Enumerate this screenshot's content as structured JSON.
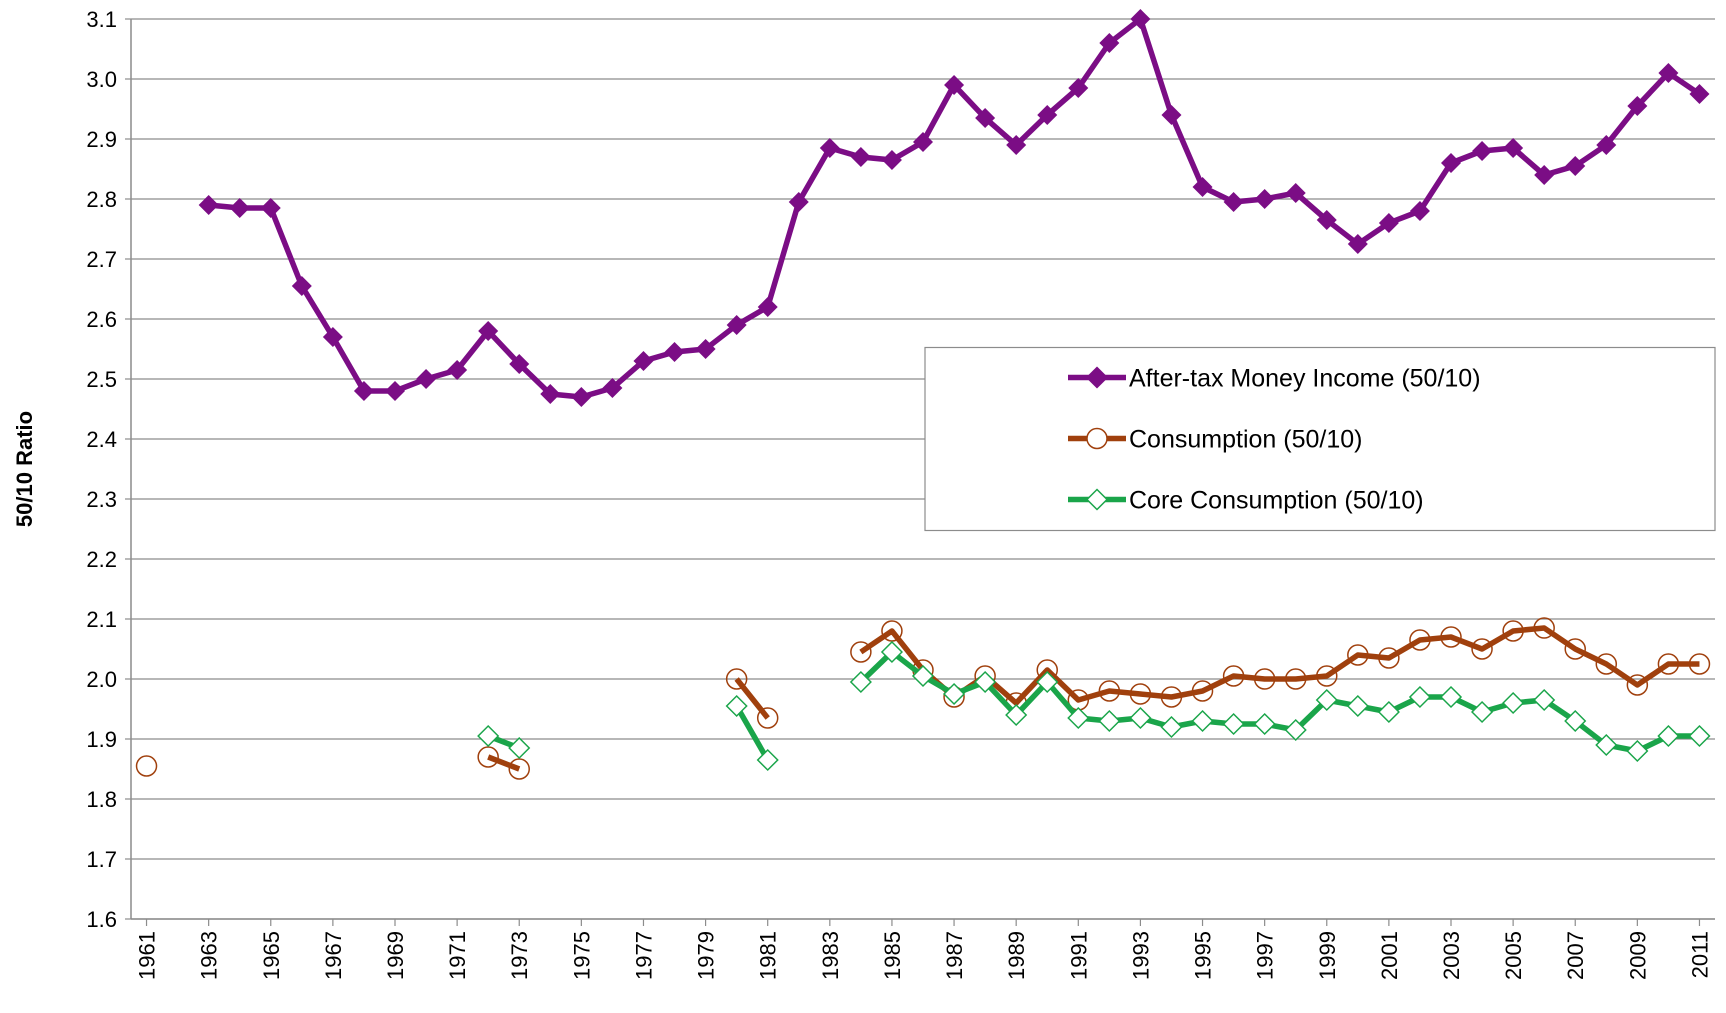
{
  "chart_data": {
    "type": "line",
    "y_label": "50/10 Ratio",
    "x": [
      1961,
      1962,
      1963,
      1964,
      1965,
      1966,
      1967,
      1968,
      1969,
      1970,
      1971,
      1972,
      1973,
      1974,
      1975,
      1976,
      1977,
      1978,
      1979,
      1980,
      1981,
      1982,
      1983,
      1984,
      1985,
      1986,
      1987,
      1988,
      1989,
      1990,
      1991,
      1992,
      1993,
      1994,
      1995,
      1996,
      1997,
      1998,
      1999,
      2000,
      2001,
      2002,
      2003,
      2004,
      2005,
      2006,
      2007,
      2008,
      2009,
      2010,
      2011
    ],
    "xlim": [
      1960.5,
      2011.5
    ],
    "xticks": [
      1961,
      1963,
      1965,
      1967,
      1969,
      1971,
      1973,
      1975,
      1977,
      1979,
      1981,
      1983,
      1985,
      1987,
      1989,
      1991,
      1993,
      1995,
      1997,
      1999,
      2001,
      2003,
      2005,
      2007,
      2009,
      2011
    ],
    "ylim": [
      1.6,
      3.1
    ],
    "yticks": [
      1.6,
      1.7,
      1.8,
      1.9,
      {
        "value": 2,
        "label": "2.0"
      },
      2.1,
      2.2,
      2.3,
      2.4,
      2.5,
      2.6,
      2.7,
      2.8,
      2.9,
      {
        "value": 3,
        "label": "3.0"
      },
      3.1
    ],
    "grid": true,
    "legend": "center-right",
    "series": [
      {
        "name": "After-tax Money Income (50/10)",
        "color": "#7b0d85",
        "marker": "diamond-filled",
        "values": [
          null,
          null,
          2.79,
          2.785,
          2.785,
          2.655,
          2.57,
          2.48,
          2.48,
          2.5,
          2.515,
          2.58,
          2.525,
          2.475,
          2.47,
          2.485,
          2.53,
          2.545,
          2.55,
          2.59,
          2.62,
          2.795,
          2.885,
          2.87,
          2.865,
          2.895,
          2.99,
          2.935,
          2.89,
          2.94,
          2.985,
          3.06,
          3.1,
          2.94,
          2.82,
          2.795,
          2.8,
          2.81,
          2.765,
          2.725,
          2.76,
          2.78,
          2.86,
          2.88,
          2.885,
          2.84,
          2.855,
          2.89,
          2.955,
          3.01,
          2.975
        ]
      },
      {
        "name": "Consumption (50/10)",
        "color": "#a0400d",
        "marker": "circle-open",
        "values": [
          1.855,
          null,
          null,
          null,
          null,
          null,
          null,
          null,
          null,
          null,
          null,
          1.87,
          1.85,
          null,
          null,
          null,
          null,
          null,
          null,
          2.0,
          1.935,
          null,
          null,
          2.045,
          2.08,
          2.015,
          1.97,
          2.005,
          1.96,
          2.015,
          1.965,
          1.98,
          1.975,
          1.97,
          1.98,
          2.005,
          2.0,
          2.0,
          2.005,
          2.04,
          2.035,
          2.065,
          2.07,
          2.05,
          2.08,
          2.085,
          2.05,
          2.025,
          1.99,
          2.025,
          2.025
        ]
      },
      {
        "name": "Core Consumption (50/10)",
        "color": "#1aa54a",
        "marker": "diamond-open",
        "values": [
          null,
          null,
          null,
          null,
          null,
          null,
          null,
          null,
          null,
          null,
          null,
          1.905,
          1.885,
          null,
          null,
          null,
          null,
          null,
          null,
          1.955,
          1.865,
          null,
          null,
          1.995,
          2.045,
          2.005,
          1.975,
          1.995,
          1.94,
          1.995,
          1.935,
          1.93,
          1.935,
          1.92,
          1.93,
          1.925,
          1.925,
          1.915,
          1.965,
          1.955,
          1.945,
          1.97,
          1.97,
          1.945,
          1.96,
          1.965,
          1.93,
          1.89,
          1.88,
          1.905,
          1.905
        ]
      }
    ]
  }
}
